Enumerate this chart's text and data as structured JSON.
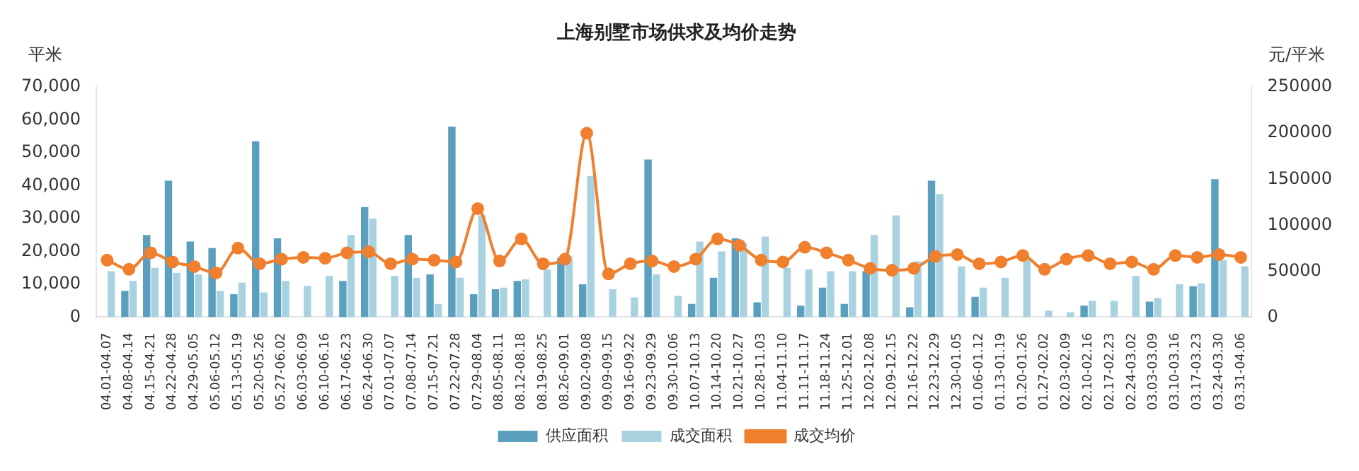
{
  "chart_data": {
    "type": "bar",
    "title": "上海别墅市场供求及均价走势",
    "ylabel": "平米",
    "y2label": "元/平米",
    "categories": [
      "04.01-04.07",
      "04.08-04.14",
      "04.15-04.21",
      "04.22-04.28",
      "04.29-05.05",
      "05.06-05.12",
      "05.13-05.19",
      "05.20-05.26",
      "05.27-06.02",
      "06.03-06.09",
      "06.10-06.16",
      "06.17-06.23",
      "06.24-06.30",
      "07.01-07.07",
      "07.08-07.14",
      "07.15-07.21",
      "07.22-07.28",
      "07.29-08.04",
      "08.05-08.11",
      "08.12-08.18",
      "08.19-08.25",
      "08.26-09.01",
      "09.02-09.08",
      "09.09-09.15",
      "09.16-09.22",
      "09.23-09.29",
      "09.30-10.06",
      "10.07-10.13",
      "10.14-10.20",
      "10.21-10.27",
      "10.28-11.03",
      "11.04-11.10",
      "11.11-11.17",
      "11.18-11.24",
      "11.25-12.01",
      "12.02-12.08",
      "12.09-12.15",
      "12.16-12.22",
      "12.23-12.29",
      "12.30-01.05",
      "01.06-01.12",
      "01.13-01.19",
      "01.20-01.26",
      "01.27-02.02",
      "02.03-02.09",
      "02.10-02.16",
      "02.17-02.23",
      "02.24-03.02",
      "03.03-03.09",
      "03.10-03.16",
      "03.17-03.23",
      "03.24-03.30",
      "03.31-04.06"
    ],
    "series": [
      {
        "name": "供应面积",
        "color": "#5a9fbd",
        "values": [
          0,
          8000,
          25000,
          41500,
          23000,
          21000,
          7000,
          53500,
          24000,
          0,
          0,
          11000,
          33500,
          0,
          25000,
          13000,
          58000,
          7000,
          8500,
          11000,
          0,
          18000,
          10000,
          0,
          0,
          48000,
          0,
          4000,
          12000,
          24000,
          4500,
          0,
          3500,
          9000,
          4000,
          14000,
          0,
          3000,
          41500,
          0,
          6200,
          0,
          0,
          0,
          0,
          3500,
          0,
          0,
          4700,
          0,
          9400,
          42000,
          0
        ]
      },
      {
        "name": "成交面积",
        "color": "#a9d2e1",
        "values": [
          14000,
          11000,
          15000,
          13500,
          13000,
          8000,
          10500,
          7500,
          11000,
          9500,
          12500,
          25000,
          30000,
          12500,
          12000,
          4000,
          12000,
          31000,
          9000,
          11500,
          14500,
          18500,
          43000,
          8500,
          6000,
          13000,
          6500,
          23000,
          20000,
          22500,
          24500,
          15000,
          14500,
          14000,
          14000,
          25000,
          31000,
          17000,
          37500,
          15500,
          9000,
          12000,
          17300,
          2000,
          1500,
          5000,
          5000,
          12500,
          5800,
          10000,
          10300,
          17300,
          15500
        ]
      },
      {
        "name": "成交均价",
        "type": "line",
        "axis": "y2",
        "color": "#f07f2e",
        "values": [
          62000,
          52000,
          70000,
          60000,
          55000,
          48000,
          75000,
          58000,
          63000,
          65000,
          64000,
          70000,
          71000,
          58000,
          63000,
          62000,
          60000,
          118000,
          61000,
          85000,
          58000,
          63000,
          200000,
          47000,
          58000,
          61000,
          55000,
          63000,
          85000,
          78000,
          62000,
          60000,
          76000,
          70000,
          62000,
          53000,
          51000,
          53000,
          66000,
          68000,
          58000,
          60000,
          67000,
          52000,
          63000,
          67000,
          58000,
          60000,
          52000,
          67000,
          65000,
          68000,
          65000
        ]
      }
    ],
    "ylim": [
      0,
      70000
    ],
    "yticks": [
      0,
      {
        "value": 10000,
        "label": "10,000"
      },
      {
        "value": 20000,
        "label": "20,000"
      },
      {
        "value": 30000,
        "label": "30,000"
      },
      {
        "value": 40000,
        "label": "40,000"
      },
      {
        "value": 50000,
        "label": "50,000"
      },
      {
        "value": 60000,
        "label": "60,000"
      },
      {
        "value": 70000,
        "label": "70,000"
      }
    ],
    "y2lim": [
      0,
      250000
    ],
    "y2ticks": [
      0,
      50000,
      100000,
      150000,
      200000,
      250000
    ],
    "grid": false,
    "legend": "bottom",
    "marker": "circle"
  }
}
